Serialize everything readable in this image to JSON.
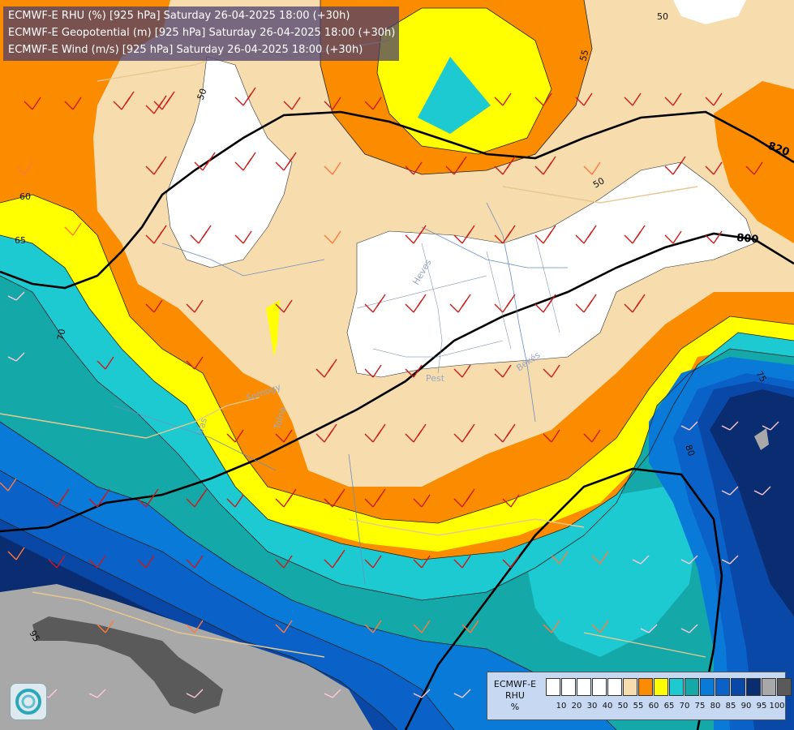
{
  "title_lines": [
    "ECMWF-E RHU (%) [925 hPa] Saturday 26-04-2025 18:00 (+30h)",
    "ECMWF-E Geopotential (m) [925 hPa] Saturday 26-04-2025 18:00 (+30h)",
    "ECMWF-E Wind (m/s) [925 hPa] Saturday 26-04-2025 18:00 (+30h)"
  ],
  "legend": {
    "title": [
      "ECMWF-E",
      "RHU",
      "%"
    ],
    "colors": [
      "#ffffff",
      "#ffffff",
      "#ffffff",
      "#ffffff",
      "#ffffff",
      "#f7dcae",
      "#fb8c00",
      "#ffff00",
      "#1ecad2",
      "#14a8a8",
      "#0a7ad8",
      "#0a62c8",
      "#0a48a8",
      "#0a2c70",
      "#a8a8a8",
      "#5a5a5a"
    ],
    "ticks": [
      "10",
      "20",
      "30",
      "40",
      "50",
      "55",
      "60",
      "65",
      "70",
      "75",
      "80",
      "85",
      "90",
      "95",
      "100"
    ]
  },
  "contour_labels": {
    "rhu": [
      "50",
      "55",
      "50",
      "60",
      "65",
      "70",
      "75",
      "80",
      "95",
      "50"
    ],
    "geopotential": [
      "820",
      "800"
    ]
  },
  "place_labels": [
    "Heves",
    "Pest",
    "Békés",
    "Somogy",
    "Tolna",
    "Vas"
  ],
  "colors": {
    "white": "#ffffff",
    "beige": "#f7dcae",
    "orange": "#fb8c00",
    "yellow": "#ffff00",
    "turquoise": "#1ecad2",
    "teal": "#14a8a8",
    "blue": "#0a7ad8",
    "mid_blue": "#0a62c8",
    "deep_blue": "#0a48a8",
    "navy": "#0a2c70",
    "grey": "#a8a8a8",
    "dark_grey": "#5a5a5a",
    "wind_barb": "#cc1a1a",
    "wind_barb_light": "#ff7a3a",
    "wind_barb_pale": "#ffc8dc",
    "geopotential_line": "#000000",
    "border": "#e8c890",
    "river": "#6a8fc0"
  },
  "icons": [
    "logo-icon",
    "wind-barb-icon"
  ]
}
